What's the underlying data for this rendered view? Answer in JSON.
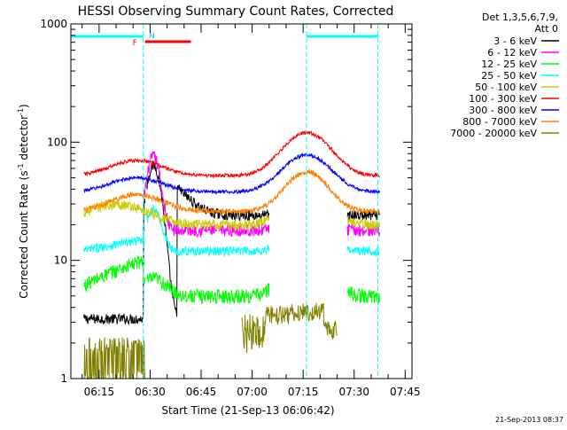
{
  "chart_data": {
    "type": "line",
    "title": "HESSI Observing Summary Count Rates, Corrected",
    "xlabel": "Start Time (21-Sep-13 06:06:42)",
    "ylabel": "Corrected Count Rate (s",
    "ylabel_sup": "-1",
    "ylabel_tail": " detector",
    "ylabel_tail_sup": "-1",
    "ylabel_close": ")",
    "y_scale": "log",
    "ylim": [
      1,
      1000
    ],
    "y_ticks": [
      {
        "value": 1,
        "label": "1"
      },
      {
        "value": 10,
        "label": "10"
      },
      {
        "value": 100,
        "label": "100"
      },
      {
        "value": 1000,
        "label": "1000"
      }
    ],
    "xlim": [
      "06:06:42",
      "07:47:00"
    ],
    "x_ticks": [
      {
        "time": "06:15",
        "label": "06:15"
      },
      {
        "time": "06:30",
        "label": "06:30"
      },
      {
        "time": "06:45",
        "label": "06:45"
      },
      {
        "time": "07:00",
        "label": "07:00"
      },
      {
        "time": "07:15",
        "label": "07:15"
      },
      {
        "time": "07:30",
        "label": "07:30"
      },
      {
        "time": "07:45",
        "label": "07:45"
      }
    ],
    "legend": {
      "placement": "right-outside",
      "header": [
        "Det 1,3,5,6,7,9,",
        "Att 0"
      ]
    },
    "series": [
      {
        "name": "3 - 6 keV",
        "color": "#000000"
      },
      {
        "name": "6 - 12 keV",
        "color": "#ff00ff"
      },
      {
        "name": "12 - 25 keV",
        "color": "#00ff00"
      },
      {
        "name": "25 - 50 keV",
        "color": "#00ffff"
      },
      {
        "name": "50 - 100 keV",
        "color": "#cccc00"
      },
      {
        "name": "100 - 300 keV",
        "color": "#ff0000"
      },
      {
        "name": "300 - 800 keV",
        "color": "#0000ff"
      },
      {
        "name": "800 - 7000 keV",
        "color": "#ff8000"
      },
      {
        "name": "7000 - 20000 keV",
        "color": "#808000"
      }
    ],
    "annotations": [
      {
        "text": "F",
        "color": "#ff0000"
      },
      {
        "text": "N",
        "color": "#00cccc"
      }
    ],
    "footer": "21-Sep-2013 08:37"
  }
}
